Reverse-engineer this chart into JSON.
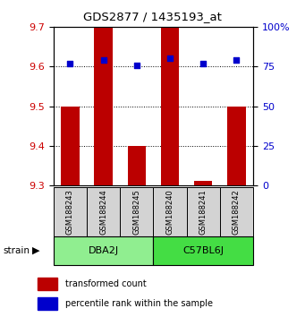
{
  "title": "GDS2877 / 1435193_at",
  "samples": [
    "GSM188243",
    "GSM188244",
    "GSM188245",
    "GSM188240",
    "GSM188241",
    "GSM188242"
  ],
  "groups": [
    {
      "name": "DBA2J",
      "color": "#90EE90",
      "indices": [
        0,
        1,
        2
      ]
    },
    {
      "name": "C57BL6J",
      "color": "#44DD44",
      "indices": [
        3,
        4,
        5
      ]
    }
  ],
  "red_tops": [
    9.5,
    9.7,
    9.4,
    9.7,
    9.312,
    9.5
  ],
  "red_base": 9.3,
  "blue_values": [
    77,
    79,
    76,
    80,
    77,
    79
  ],
  "ylim_left": [
    9.3,
    9.7
  ],
  "ylim_right": [
    0,
    100
  ],
  "yticks_left": [
    9.3,
    9.4,
    9.5,
    9.6,
    9.7
  ],
  "yticks_right": [
    0,
    25,
    50,
    75,
    100
  ],
  "bar_color": "#BB0000",
  "dot_color": "#0000CC",
  "bar_width": 0.55,
  "legend_red": "transformed count",
  "legend_blue": "percentile rank within the sample",
  "strain_label": "strain",
  "left_label_color": "#CC0000",
  "right_label_color": "#0000CC",
  "group1_color": "#AAEEBB",
  "group2_color": "#44EE44"
}
